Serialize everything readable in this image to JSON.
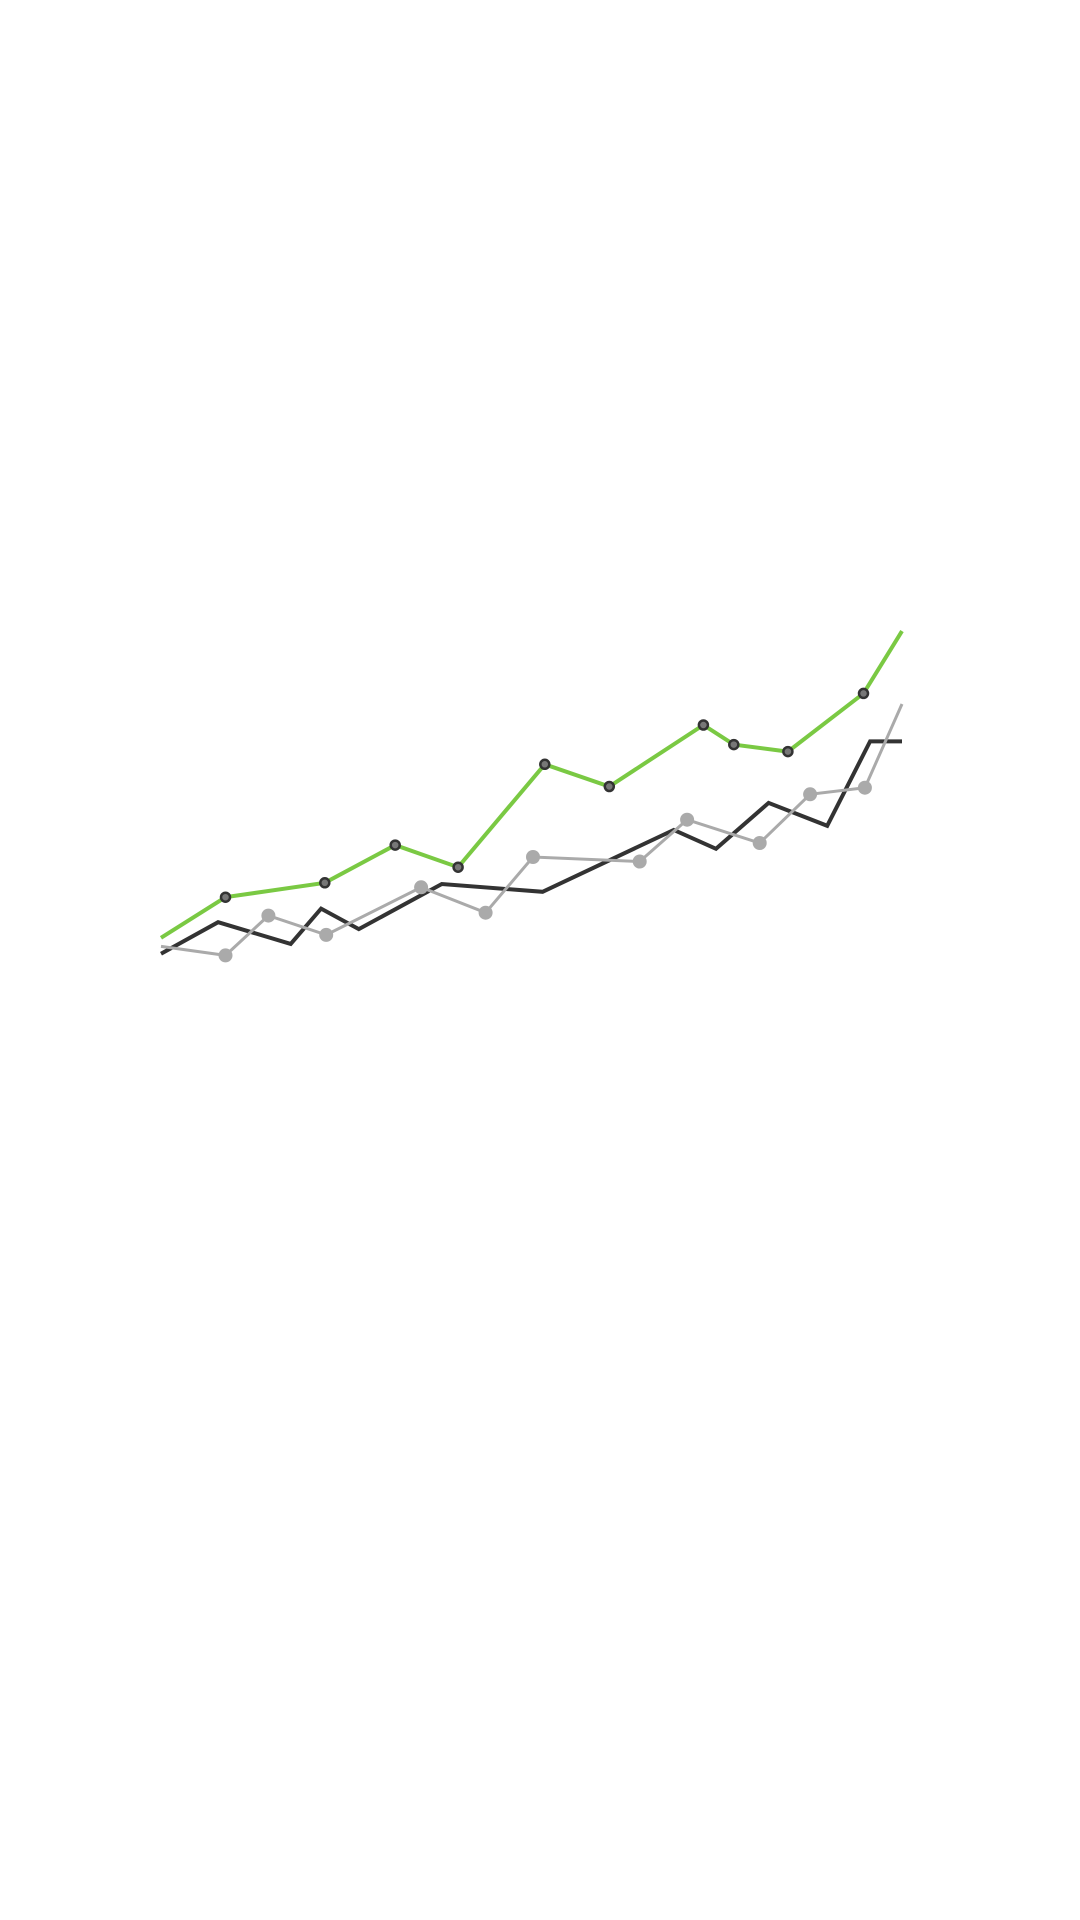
{
  "chart_data": {
    "type": "line",
    "title": "",
    "xlabel": "",
    "ylabel": "",
    "xlim": [
      0,
      100
    ],
    "ylim": [
      0,
      100
    ],
    "grid": false,
    "legend": "none",
    "axes_visible": false,
    "series": [
      {
        "color": "#7ac943",
        "stroke_width": 4,
        "marker": "dot-dark-outline",
        "points": [
          {
            "x": 0,
            "y": 22.5,
            "marker": false
          },
          {
            "x": 8.7,
            "y": 32.4,
            "marker": true
          },
          {
            "x": 22.1,
            "y": 35.9,
            "marker": true
          },
          {
            "x": 31.6,
            "y": 45.1,
            "marker": true
          },
          {
            "x": 40.1,
            "y": 39.7,
            "marker": true
          },
          {
            "x": 51.8,
            "y": 64.8,
            "marker": true
          },
          {
            "x": 60.5,
            "y": 59.4,
            "marker": true
          },
          {
            "x": 73.2,
            "y": 74.4,
            "marker": true
          },
          {
            "x": 77.3,
            "y": 69.6,
            "marker": true
          },
          {
            "x": 84.6,
            "y": 67.9,
            "marker": true
          },
          {
            "x": 94.8,
            "y": 82.1,
            "marker": true
          },
          {
            "x": 100,
            "y": 97.3,
            "marker": false
          }
        ]
      },
      {
        "color": "#333333",
        "stroke_width": 4,
        "marker": "none",
        "points": [
          {
            "x": 0,
            "y": 18.6
          },
          {
            "x": 7.7,
            "y": 26.3
          },
          {
            "x": 17.5,
            "y": 21.0
          },
          {
            "x": 21.6,
            "y": 29.6
          },
          {
            "x": 26.7,
            "y": 24.6
          },
          {
            "x": 37.9,
            "y": 35.6
          },
          {
            "x": 51.5,
            "y": 33.7
          },
          {
            "x": 69.2,
            "y": 48.8
          },
          {
            "x": 74.9,
            "y": 44.2
          },
          {
            "x": 82.0,
            "y": 55.4
          },
          {
            "x": 89.9,
            "y": 49.8
          },
          {
            "x": 95.7,
            "y": 70.4
          },
          {
            "x": 100,
            "y": 70.4
          }
        ]
      },
      {
        "color": "#aaaaaa",
        "stroke_width": 3,
        "marker": "dot-grey",
        "points": [
          {
            "x": 0,
            "y": 20.4,
            "marker": false
          },
          {
            "x": 8.7,
            "y": 18.2,
            "marker": true
          },
          {
            "x": 14.5,
            "y": 27.9,
            "marker": true
          },
          {
            "x": 22.3,
            "y": 23.2,
            "marker": true
          },
          {
            "x": 35.1,
            "y": 34.8,
            "marker": true
          },
          {
            "x": 43.8,
            "y": 28.6,
            "marker": true
          },
          {
            "x": 50.2,
            "y": 42.2,
            "marker": true
          },
          {
            "x": 64.6,
            "y": 41.1,
            "marker": true
          },
          {
            "x": 71.0,
            "y": 51.3,
            "marker": true
          },
          {
            "x": 80.8,
            "y": 45.6,
            "marker": true
          },
          {
            "x": 87.6,
            "y": 57.5,
            "marker": true
          },
          {
            "x": 95.0,
            "y": 59.1,
            "marker": true
          },
          {
            "x": 100,
            "y": 79.5,
            "marker": false
          }
        ]
      }
    ]
  }
}
